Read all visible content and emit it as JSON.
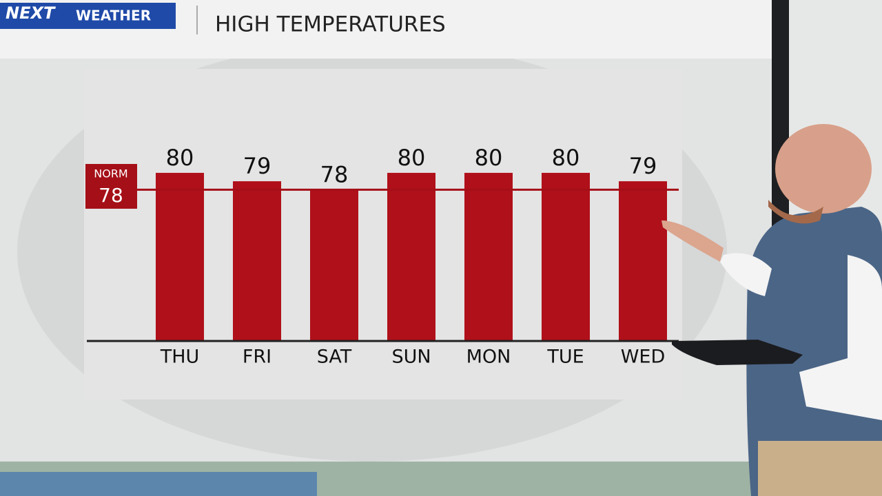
{
  "logo": {
    "brand": "NEXT",
    "name": "WEATHER"
  },
  "chart_data": {
    "type": "bar",
    "title": "HIGH TEMPERATURES",
    "categories": [
      "THU",
      "FRI",
      "SAT",
      "SUN",
      "MON",
      "TUE",
      "WED"
    ],
    "values": [
      80,
      79,
      78,
      80,
      80,
      80,
      79
    ],
    "color": "#b0101a",
    "ylim": [
      60,
      82
    ],
    "norm": {
      "label": "NORM",
      "value": 78
    }
  }
}
